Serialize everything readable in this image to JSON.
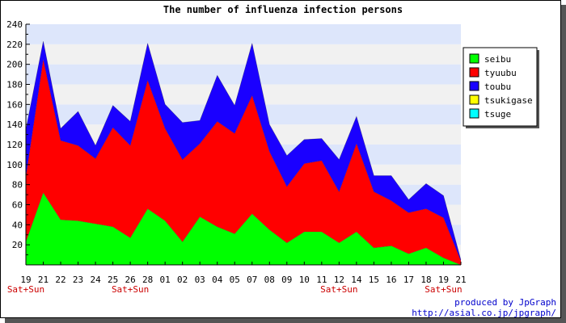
{
  "chart_data": {
    "type": "area",
    "stacked": true,
    "title": "The number of influenza infection persons",
    "ylim": [
      0,
      240
    ],
    "yticks": [
      20,
      40,
      60,
      80,
      100,
      120,
      140,
      160,
      180,
      200,
      220,
      240
    ],
    "grid": true,
    "legend_position": "top-right",
    "categories": [
      "19",
      "21",
      "22",
      "23",
      "24",
      "25",
      "26",
      "28",
      "01",
      "02",
      "03",
      "04",
      "05",
      "07",
      "08",
      "09",
      "10",
      "11",
      "12",
      "14",
      "15",
      "16",
      "17",
      "18",
      "19",
      "21"
    ],
    "weekend_label": "Sat+Sun",
    "weekend_indices": [
      0,
      6,
      18,
      24
    ],
    "series": [
      {
        "name": "seibu",
        "color": "#00ff00",
        "values": [
          23,
          72,
          45,
          44,
          41,
          38,
          27,
          56,
          44,
          23,
          48,
          38,
          31,
          51,
          35,
          22,
          33,
          33,
          22,
          33,
          17,
          19,
          11,
          17,
          7,
          0
        ]
      },
      {
        "name": "tyuubu",
        "color": "#ff0000",
        "values": [
          65,
          133,
          79,
          75,
          65,
          99,
          92,
          128,
          92,
          82,
          73,
          105,
          100,
          118,
          78,
          56,
          68,
          71,
          51,
          88,
          56,
          45,
          41,
          39,
          40,
          4
        ]
      },
      {
        "name": "toubu",
        "color": "#1a00ff",
        "values": [
          47,
          18,
          12,
          34,
          13,
          22,
          24,
          37,
          24,
          37,
          23,
          46,
          28,
          52,
          27,
          31,
          24,
          22,
          32,
          27,
          16,
          25,
          13,
          25,
          22,
          1
        ]
      },
      {
        "name": "tsukigase",
        "color": "#ffff00",
        "values": [
          0,
          0,
          0,
          0,
          0,
          0,
          0,
          0,
          0,
          0,
          0,
          0,
          0,
          0,
          0,
          0,
          0,
          0,
          0,
          0,
          0,
          0,
          0,
          0,
          0,
          0
        ]
      },
      {
        "name": "tsuge",
        "color": "#00ffff",
        "values": [
          0,
          0,
          0,
          0,
          0,
          0,
          0,
          0,
          0,
          0,
          0,
          0,
          0,
          0,
          0,
          0,
          0,
          0,
          0,
          0,
          0,
          0,
          0,
          0,
          0,
          0
        ]
      }
    ]
  },
  "credit": {
    "line1": "produced by JpGraph",
    "line2": "http://asial.co.jp/jpgraph/"
  },
  "colors": {
    "band_blue": "#dde6fb",
    "band_gray": "#f1f1f1",
    "credit": "#0000cc",
    "weekend_label": "#cc0000"
  }
}
